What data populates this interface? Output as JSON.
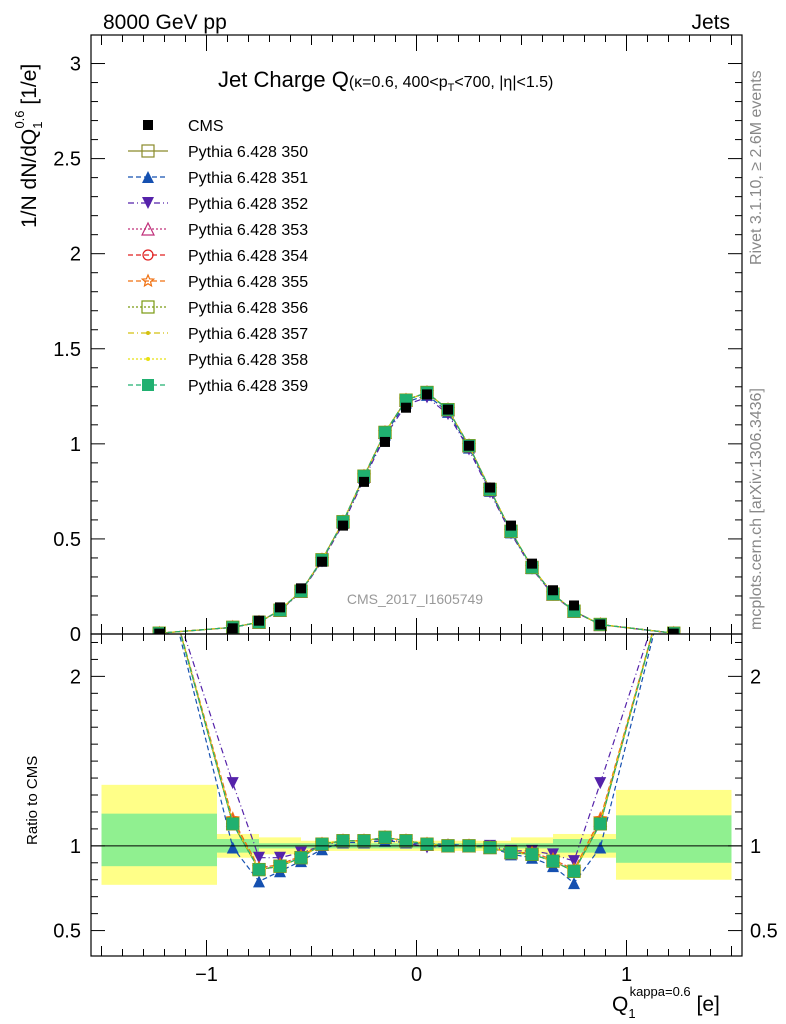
{
  "header": {
    "left": "8000 GeV pp",
    "right": "Jets"
  },
  "side_text": {
    "top": "Rivet 3.1.10, ≥ 2.6M events",
    "bottom": "mcplots.cern.ch [arXiv:1306.3436]"
  },
  "chart_data": [
    {
      "type": "line",
      "title_main": "Jet Charge Q",
      "title_cond": "(κ=0.6, 400<p",
      "title_sub": "T",
      "title_rest": "<700, |η|<1.5)",
      "ylabel_main": "1/N dN/dQ",
      "ylabel_sub": "1",
      "ylabel_sup": "0.6",
      "ylabel_unit": " [1/e]",
      "watermark": "CMS_2017_I1605749",
      "xlim": [
        -1.55,
        1.55
      ],
      "ylim": [
        0,
        3.15
      ],
      "yticks": [
        "0",
        "0.5",
        "1",
        "1.5",
        "2",
        "2.5",
        "3"
      ],
      "x": [
        -1.225,
        -0.875,
        -0.75,
        -0.65,
        -0.55,
        -0.45,
        -0.35,
        -0.25,
        -0.15,
        -0.05,
        0.05,
        0.15,
        0.25,
        0.35,
        0.45,
        0.55,
        0.65,
        0.75,
        0.875,
        1.225
      ],
      "cms": [
        0.002,
        0.03,
        0.07,
        0.14,
        0.24,
        0.38,
        0.57,
        0.8,
        1.01,
        1.19,
        1.26,
        1.18,
        0.99,
        0.77,
        0.57,
        0.37,
        0.23,
        0.15,
        0.05,
        0.002
      ],
      "mc": [
        0.004,
        0.035,
        0.062,
        0.125,
        0.225,
        0.39,
        0.59,
        0.83,
        1.06,
        1.23,
        1.27,
        1.18,
        0.99,
        0.76,
        0.54,
        0.35,
        0.21,
        0.12,
        0.05,
        0.004
      ],
      "legend": [
        "CMS",
        "Pythia 6.428 350",
        "Pythia 6.428 351",
        "Pythia 6.428 352",
        "Pythia 6.428 353",
        "Pythia 6.428 354",
        "Pythia 6.428 355",
        "Pythia 6.428 356",
        "Pythia 6.428 357",
        "Pythia 6.428 358",
        "Pythia 6.428 359"
      ]
    },
    {
      "type": "line",
      "ylabel": "Ratio to CMS",
      "xlabel_main": "Q",
      "xlabel_sub": "1",
      "xlabel_sup": "kappa=0.6",
      "xlabel_unit": " [e]",
      "xlim": [
        -1.55,
        1.55
      ],
      "ylim": [
        0.35,
        2.25
      ],
      "yticks": [
        "0.5",
        "1",
        "2"
      ],
      "xticks": [
        "−1",
        "0",
        "1"
      ],
      "x": [
        -0.875,
        -0.75,
        -0.65,
        -0.55,
        -0.45,
        -0.35,
        -0.25,
        -0.15,
        -0.05,
        0.05,
        0.15,
        0.25,
        0.35,
        0.45,
        0.55,
        0.65,
        0.75,
        0.875
      ],
      "band_yellow": [
        {
          "x0": -1.5,
          "x1": -0.95,
          "lo": 0.77,
          "hi": 1.36
        },
        {
          "x0": -0.95,
          "x1": -0.75,
          "lo": 0.93,
          "hi": 1.07
        },
        {
          "x0": -0.75,
          "x1": -0.55,
          "lo": 0.95,
          "hi": 1.05
        },
        {
          "x0": -0.55,
          "x1": 0.45,
          "lo": 0.97,
          "hi": 1.03
        },
        {
          "x0": 0.45,
          "x1": 0.65,
          "lo": 0.95,
          "hi": 1.05
        },
        {
          "x0": 0.65,
          "x1": 0.95,
          "lo": 0.93,
          "hi": 1.07
        },
        {
          "x0": 0.95,
          "x1": 1.5,
          "lo": 0.8,
          "hi": 1.33
        }
      ],
      "band_green": [
        {
          "x0": -1.5,
          "x1": -0.95,
          "lo": 0.88,
          "hi": 1.19
        },
        {
          "x0": -0.95,
          "x1": -0.75,
          "lo": 0.96,
          "hi": 1.04
        },
        {
          "x0": -0.75,
          "x1": 0.65,
          "lo": 0.985,
          "hi": 1.015
        },
        {
          "x0": 0.65,
          "x1": 0.95,
          "lo": 0.96,
          "hi": 1.04
        },
        {
          "x0": 0.95,
          "x1": 1.5,
          "lo": 0.9,
          "hi": 1.18
        }
      ]
    }
  ],
  "series": [
    {
      "color": "#8a8a2a",
      "dash": "",
      "marker": "square-open",
      "r_in": 1.14,
      "r_out": 1.1,
      "ratio": [
        1.13,
        0.86,
        0.88,
        0.93,
        1.01,
        1.03,
        1.03,
        1.05,
        1.03,
        1.01,
        1.0,
        1.0,
        0.99,
        0.96,
        0.95,
        0.91,
        0.85,
        1.13
      ],
      "mc_off": 0.0
    },
    {
      "color": "#1550b0",
      "dash": "5,3",
      "marker": "triangle-up",
      "r_in": 1.02,
      "r_out": 0.98,
      "ratio": [
        0.99,
        0.79,
        0.85,
        0.91,
        0.98,
        1.02,
        1.02,
        1.03,
        1.02,
        1.01,
        1.01,
        1.0,
        0.99,
        0.95,
        0.93,
        0.88,
        0.78,
        0.99
      ],
      "mc_off": -0.01
    },
    {
      "color": "#5522aa",
      "dash": "6,3,1,3",
      "marker": "triangle-down",
      "r_in": 1.4,
      "r_out": 1.42,
      "ratio": [
        1.37,
        0.93,
        0.93,
        0.96,
        1.0,
        1.03,
        1.03,
        1.04,
        1.02,
        0.99,
        1.0,
        1.0,
        1.0,
        0.97,
        0.97,
        0.95,
        0.91,
        1.37
      ],
      "mc_off": -0.02
    },
    {
      "color": "#c0307a",
      "dash": "2,2",
      "marker": "triangle-open",
      "r_in": 1.18,
      "r_out": 1.16,
      "ratio": [
        1.15,
        0.87,
        0.89,
        0.94,
        1.01,
        1.03,
        1.03,
        1.05,
        1.03,
        1.01,
        1.0,
        1.0,
        0.99,
        0.96,
        0.96,
        0.92,
        0.86,
        1.15
      ],
      "mc_off": 0.0
    },
    {
      "color": "#e02020",
      "dash": "5,3",
      "marker": "circle-open",
      "r_in": 1.17,
      "r_out": 1.15,
      "ratio": [
        1.14,
        0.86,
        0.88,
        0.93,
        1.01,
        1.03,
        1.03,
        1.05,
        1.03,
        1.01,
        1.0,
        1.0,
        0.99,
        0.96,
        0.95,
        0.91,
        0.85,
        1.14
      ],
      "mc_off": 0.0
    },
    {
      "color": "#f07010",
      "dash": "5,3",
      "marker": "star-open",
      "r_in": 1.19,
      "r_out": 1.17,
      "ratio": [
        1.16,
        0.87,
        0.89,
        0.94,
        1.01,
        1.03,
        1.03,
        1.05,
        1.03,
        1.01,
        1.0,
        1.0,
        0.99,
        0.96,
        0.96,
        0.92,
        0.86,
        1.16
      ],
      "mc_off": 0.0
    },
    {
      "color": "#7a9a10",
      "dash": "2,2",
      "marker": "square-open",
      "r_in": 1.14,
      "r_out": 1.11,
      "ratio": [
        1.13,
        0.86,
        0.88,
        0.93,
        1.01,
        1.03,
        1.03,
        1.05,
        1.03,
        1.01,
        1.0,
        1.0,
        0.99,
        0.96,
        0.95,
        0.91,
        0.85,
        1.13
      ],
      "mc_off": 0.0
    },
    {
      "color": "#d4c010",
      "dash": "6,3,1,3",
      "marker": "dot",
      "r_in": 1.16,
      "r_out": 1.14,
      "ratio": [
        1.14,
        0.86,
        0.88,
        0.93,
        1.01,
        1.03,
        1.03,
        1.05,
        1.03,
        1.01,
        1.0,
        1.0,
        0.99,
        0.96,
        0.95,
        0.91,
        0.85,
        1.14
      ],
      "mc_off": 0.0
    },
    {
      "color": "#e8e010",
      "dash": "2,2",
      "marker": "dot",
      "r_in": 1.16,
      "r_out": 1.14,
      "ratio": [
        1.14,
        0.86,
        0.88,
        0.93,
        1.01,
        1.03,
        1.03,
        1.05,
        1.03,
        1.01,
        1.0,
        1.0,
        0.99,
        0.96,
        0.95,
        0.91,
        0.85,
        1.14
      ],
      "mc_off": 0.0
    },
    {
      "color": "#20b070",
      "dash": "5,3",
      "marker": "square",
      "r_in": 1.15,
      "r_out": 1.13,
      "ratio": [
        1.13,
        0.86,
        0.88,
        0.93,
        1.01,
        1.03,
        1.03,
        1.05,
        1.03,
        1.01,
        1.0,
        1.0,
        0.99,
        0.96,
        0.95,
        0.91,
        0.85,
        1.13
      ],
      "mc_off": 0.0
    }
  ]
}
